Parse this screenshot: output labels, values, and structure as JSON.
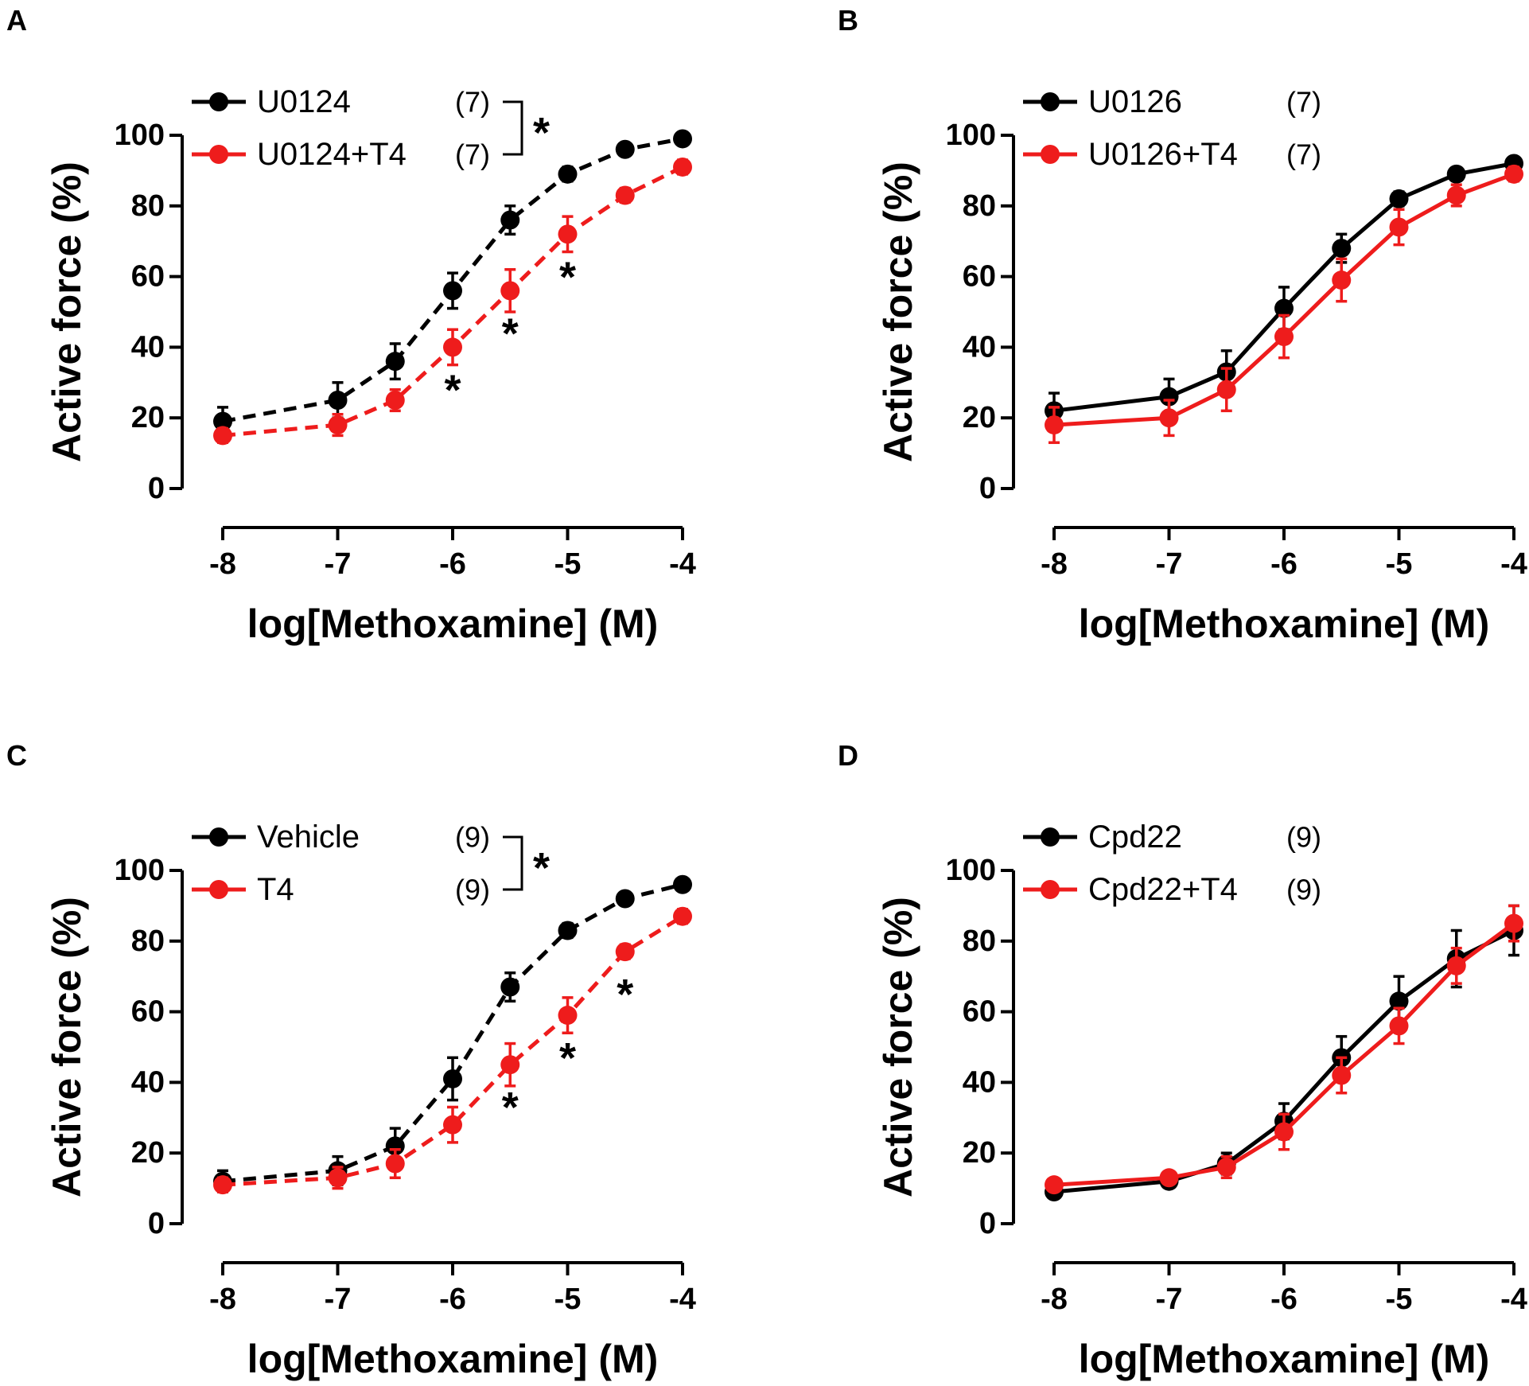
{
  "figure": {
    "background": "#ffffff",
    "colors": {
      "control": "#000000",
      "t4": "#ee1c1c"
    }
  },
  "chart_data": [
    {
      "panel": "A",
      "type": "line",
      "line_style": "dashed",
      "xlabel": "log[Methoxamine] (M)",
      "ylabel": "Active force (%)",
      "xlim": [
        -8,
        -4
      ],
      "ylim": [
        0,
        100
      ],
      "xticks": [
        -8,
        -7,
        -6,
        -5,
        -4
      ],
      "xtick_labels": [
        "-8",
        "-7",
        "-6",
        "-5",
        "-4"
      ],
      "yticks": [
        0,
        20,
        40,
        60,
        80,
        100
      ],
      "ytick_labels": [
        "0",
        "20",
        "40",
        "60",
        "80",
        "100"
      ],
      "x": [
        -8,
        -7,
        -6.5,
        -6,
        -5.5,
        -5,
        -4.5,
        -4
      ],
      "series": [
        {
          "name": "U0124",
          "n": "(7)",
          "color": "#000000",
          "values": [
            19,
            25,
            36,
            56,
            76,
            89,
            96,
            99
          ],
          "errors": [
            4,
            5,
            5,
            5,
            4,
            2,
            1.5,
            1.5
          ]
        },
        {
          "name": "U0124+T4",
          "n": "(7)",
          "color": "#ee1c1c",
          "values": [
            15,
            18,
            25,
            40,
            56,
            72,
            83,
            91
          ],
          "errors": [
            2,
            3,
            3,
            5,
            6,
            5,
            2,
            2
          ]
        }
      ],
      "legend_bracket_label": "*",
      "significance": [
        {
          "x": -6,
          "label": "*"
        },
        {
          "x": -5.5,
          "label": "*"
        },
        {
          "x": -5,
          "label": "*"
        }
      ]
    },
    {
      "panel": "B",
      "type": "line",
      "line_style": "solid",
      "xlabel": "log[Methoxamine] (M)",
      "ylabel": "Active force (%)",
      "xlim": [
        -8,
        -4
      ],
      "ylim": [
        0,
        100
      ],
      "xticks": [
        -8,
        -7,
        -6,
        -5,
        -4
      ],
      "xtick_labels": [
        "-8",
        "-7",
        "-6",
        "-5",
        "-4"
      ],
      "yticks": [
        0,
        20,
        40,
        60,
        80,
        100
      ],
      "ytick_labels": [
        "0",
        "20",
        "40",
        "60",
        "80",
        "100"
      ],
      "x": [
        -8,
        -7,
        -6.5,
        -6,
        -5.5,
        -5,
        -4.5,
        -4
      ],
      "series": [
        {
          "name": "U0126",
          "n": "(7)",
          "color": "#000000",
          "values": [
            22,
            26,
            33,
            51,
            68,
            82,
            89,
            92
          ],
          "errors": [
            5,
            5,
            6,
            6,
            4,
            2,
            1.5,
            1.5
          ]
        },
        {
          "name": "U0126+T4",
          "n": "(7)",
          "color": "#ee1c1c",
          "values": [
            18,
            20,
            28,
            43,
            59,
            74,
            83,
            89
          ],
          "errors": [
            5,
            5,
            6,
            6,
            6,
            5,
            3,
            2
          ]
        }
      ],
      "significance": []
    },
    {
      "panel": "C",
      "type": "line",
      "line_style": "dashed",
      "xlabel": "log[Methoxamine] (M)",
      "ylabel": "Active force (%)",
      "xlim": [
        -8,
        -4
      ],
      "ylim": [
        0,
        100
      ],
      "xticks": [
        -8,
        -7,
        -6,
        -5,
        -4
      ],
      "xtick_labels": [
        "-8",
        "-7",
        "-6",
        "-5",
        "-4"
      ],
      "yticks": [
        0,
        20,
        40,
        60,
        80,
        100
      ],
      "ytick_labels": [
        "0",
        "20",
        "40",
        "60",
        "80",
        "100"
      ],
      "x": [
        -8,
        -7,
        -6.5,
        -6,
        -5.5,
        -5,
        -4.5,
        -4
      ],
      "series": [
        {
          "name": "Vehicle",
          "n": "(9)",
          "color": "#000000",
          "values": [
            12,
            15,
            22,
            41,
            67,
            83,
            92,
            96
          ],
          "errors": [
            3,
            4,
            5,
            6,
            4,
            2,
            1.5,
            1.5
          ]
        },
        {
          "name": "T4",
          "n": "(9)",
          "color": "#ee1c1c",
          "values": [
            11,
            13,
            17,
            28,
            45,
            59,
            77,
            87
          ],
          "errors": [
            2,
            3,
            4,
            5,
            6,
            5,
            2,
            2
          ]
        }
      ],
      "legend_bracket_label": "*",
      "significance": [
        {
          "x": -5.5,
          "label": "*"
        },
        {
          "x": -5,
          "label": "*"
        },
        {
          "x": -4.5,
          "label": "*"
        }
      ]
    },
    {
      "panel": "D",
      "type": "line",
      "line_style": "solid",
      "xlabel": "log[Methoxamine] (M)",
      "ylabel": "Active force (%)",
      "xlim": [
        -8,
        -4
      ],
      "ylim": [
        0,
        100
      ],
      "xticks": [
        -8,
        -7,
        -6,
        -5,
        -4
      ],
      "xtick_labels": [
        "-8",
        "-7",
        "-6",
        "-5",
        "-4"
      ],
      "yticks": [
        0,
        20,
        40,
        60,
        80,
        100
      ],
      "ytick_labels": [
        "0",
        "20",
        "40",
        "60",
        "80",
        "100"
      ],
      "x": [
        -8,
        -7,
        -6.5,
        -6,
        -5.5,
        -5,
        -4.5,
        -4
      ],
      "series": [
        {
          "name": "Cpd22",
          "n": "(9)",
          "color": "#000000",
          "values": [
            9,
            12,
            17,
            29,
            47,
            63,
            75,
            83
          ],
          "errors": [
            1.5,
            1.5,
            3,
            5,
            6,
            7,
            8,
            7
          ]
        },
        {
          "name": "Cpd22+T4",
          "n": "(9)",
          "color": "#ee1c1c",
          "values": [
            11,
            13,
            16,
            26,
            42,
            56,
            73,
            85
          ],
          "errors": [
            1.5,
            1.5,
            3,
            5,
            5,
            5,
            5,
            5
          ]
        }
      ],
      "significance": []
    }
  ]
}
